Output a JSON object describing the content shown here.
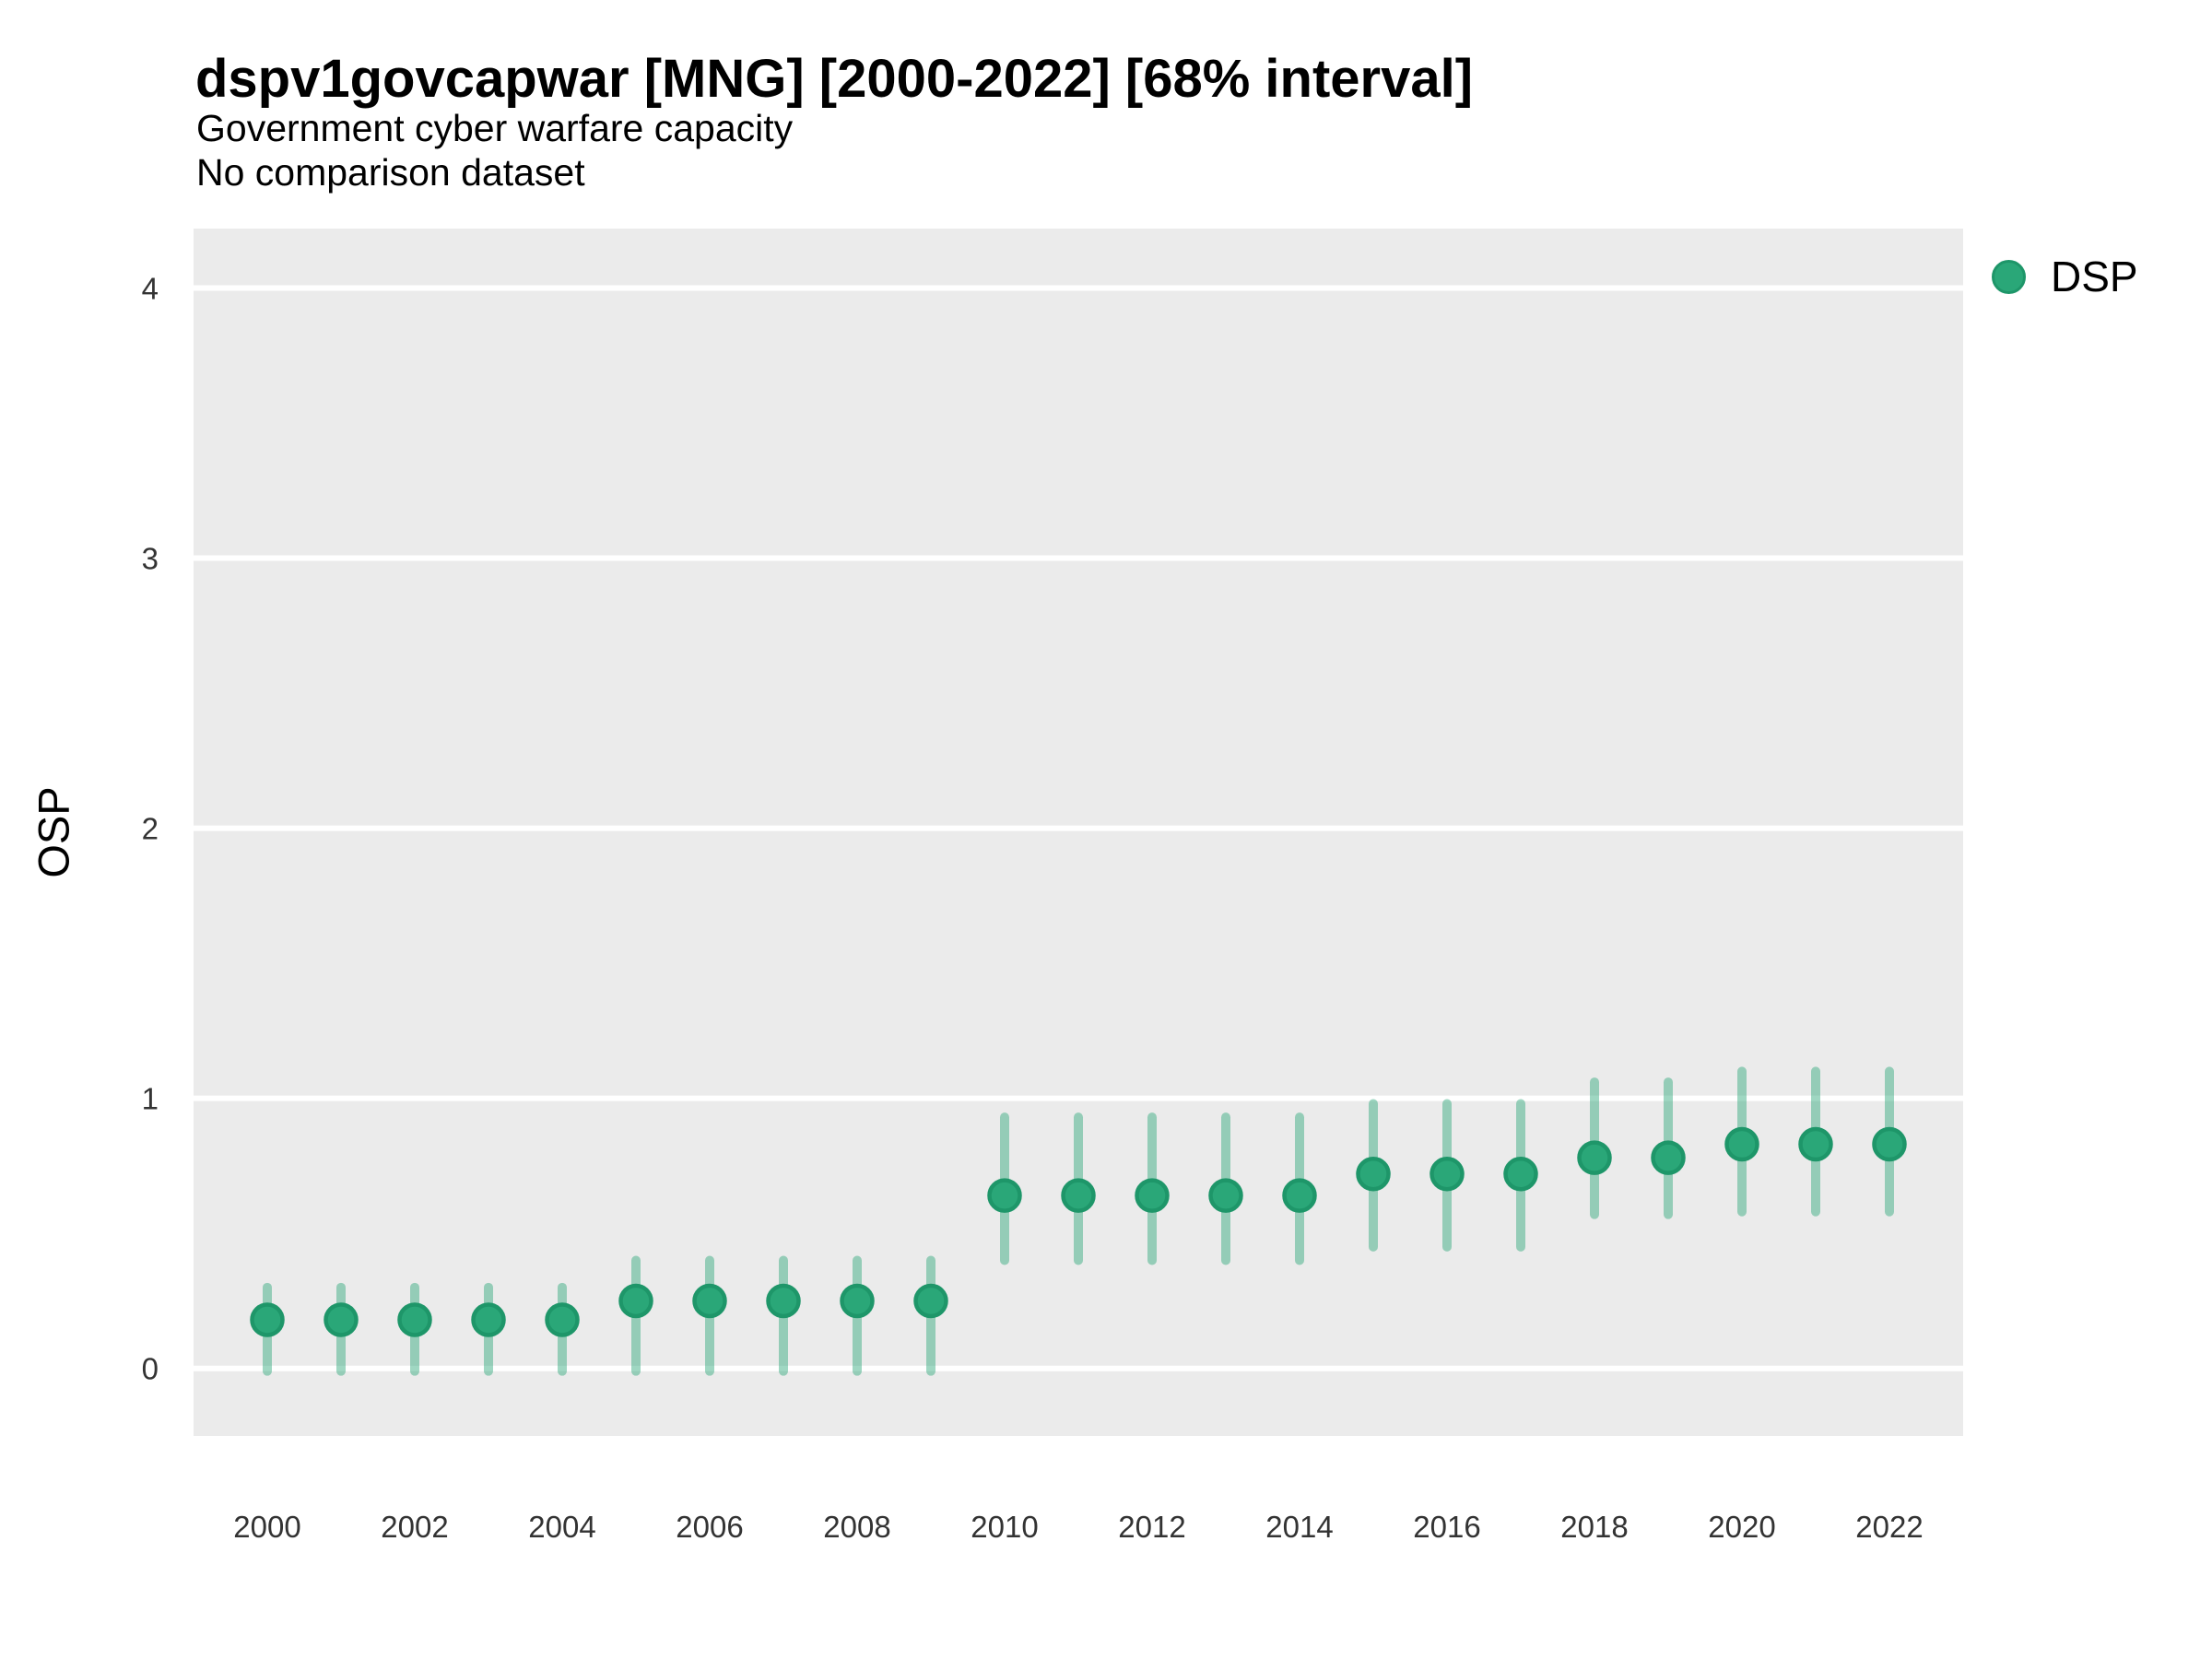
{
  "header": {
    "title": "dspv1govcapwar [MNG] [2000-2022] [68% interval]",
    "subtitle": "Government cyber warfare capacity",
    "note": "No comparison dataset"
  },
  "legend": {
    "label": "DSP",
    "position": "right-top"
  },
  "colors": {
    "point_fill": "#2aa778",
    "point_border": "#1e9669",
    "interval_line": "#2aa778",
    "interval_opacity": 0.45,
    "panel_bg": "#ebebeb",
    "gridline": "#ffffff",
    "tick_text": "#333333",
    "title_text": "#000000"
  },
  "chart_data": {
    "type": "scatter",
    "title": "dspv1govcapwar [MNG] [2000-2022] [68% interval]",
    "subtitle": "Government cyber warfare capacity",
    "note": "No comparison dataset",
    "xlabel": "",
    "ylabel": "OSP",
    "interval_level": "68%",
    "grid": "horizontal-major-only",
    "legend_position": "right-top",
    "xlim": [
      1999,
      2023
    ],
    "ylim": [
      -0.25,
      4.22
    ],
    "x_ticks": [
      2000,
      2002,
      2004,
      2006,
      2008,
      2010,
      2012,
      2014,
      2016,
      2018,
      2020,
      2022
    ],
    "y_ticks": [
      0,
      1,
      2,
      3,
      4
    ],
    "series": [
      {
        "name": "DSP",
        "x": [
          2000,
          2001,
          2002,
          2003,
          2004,
          2005,
          2006,
          2007,
          2008,
          2009,
          2010,
          2011,
          2012,
          2013,
          2014,
          2015,
          2016,
          2017,
          2018,
          2019,
          2020,
          2021,
          2022
        ],
        "y": [
          0.18,
          0.18,
          0.18,
          0.18,
          0.18,
          0.25,
          0.25,
          0.25,
          0.25,
          0.25,
          0.64,
          0.64,
          0.64,
          0.64,
          0.64,
          0.72,
          0.72,
          0.72,
          0.78,
          0.78,
          0.83,
          0.83,
          0.83
        ],
        "y_lower": [
          -0.01,
          -0.01,
          -0.01,
          -0.01,
          -0.01,
          -0.01,
          -0.01,
          -0.01,
          -0.01,
          -0.01,
          0.4,
          0.4,
          0.4,
          0.4,
          0.4,
          0.45,
          0.45,
          0.45,
          0.57,
          0.57,
          0.58,
          0.58,
          0.58
        ],
        "y_upper": [
          0.3,
          0.3,
          0.3,
          0.3,
          0.3,
          0.4,
          0.4,
          0.4,
          0.4,
          0.4,
          0.93,
          0.93,
          0.93,
          0.93,
          0.93,
          0.98,
          0.98,
          0.98,
          1.06,
          1.06,
          1.1,
          1.1,
          1.1
        ]
      }
    ]
  }
}
